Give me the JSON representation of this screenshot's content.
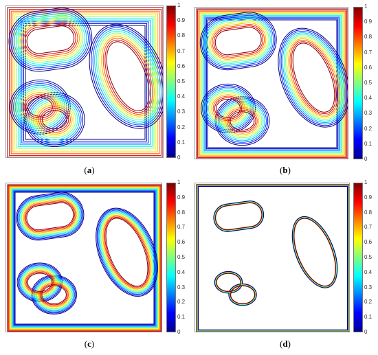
{
  "panels": [
    {
      "label_open": "(",
      "label_letter": "a",
      "label_close": ")",
      "variant": "a"
    },
    {
      "label_open": "(",
      "label_letter": "b",
      "label_close": ")",
      "variant": "b"
    },
    {
      "label_open": "(",
      "label_letter": "c",
      "label_close": ")",
      "variant": "c"
    },
    {
      "label_open": "(",
      "label_letter": "d",
      "label_close": ")",
      "variant": "d"
    }
  ],
  "colorbar_ticks": [
    "0",
    "0.1",
    "0.2",
    "0.3",
    "0.4",
    "0.5",
    "0.6",
    "0.7",
    "0.8",
    "0.9",
    "1"
  ],
  "colormap": "jet"
}
